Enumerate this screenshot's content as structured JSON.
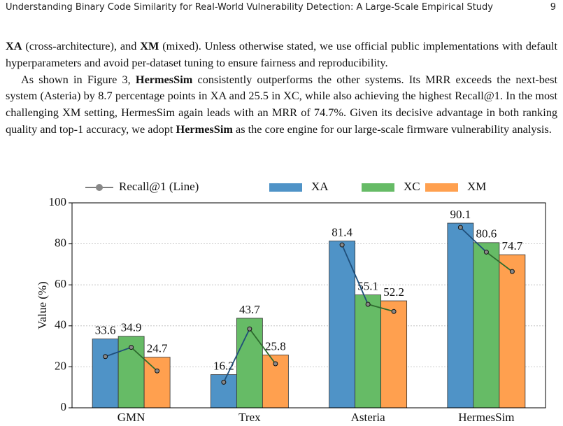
{
  "header": {
    "title": "Understanding Binary Code Similarity for Real-World Vulnerability Detection: A Large-Scale Empirical Study",
    "page": "9"
  },
  "paragraphs": [
    [
      {
        "text": "XA",
        "bold": true
      },
      {
        "text": " (cross-architecture), and "
      },
      {
        "text": "XM",
        "bold": true
      },
      {
        "text": " (mixed). Unless otherwise stated, we use official public implementations with default hyperparameters and avoid per-dataset tuning to ensure fairness and reproducibility."
      }
    ],
    [
      {
        "text": "As shown in Figure 3, "
      },
      {
        "text": "HermesSim",
        "bold": true
      },
      {
        "text": " consistently outperforms the other systems. Its MRR exceeds the next-best system (Asteria) by 8.7 percentage points in XA and 25.5 in XC, while also achieving the highest Recall@1. In the most challenging XM setting, HermesSim again leads with an MRR of 74.7%. Given its decisive advantage in both ranking quality and top-1 accuracy, we adopt "
      },
      {
        "text": "HermesSim",
        "bold": true
      },
      {
        "text": " as the core engine for our large-scale firmware vulnerability analysis."
      }
    ]
  ],
  "chart_data": {
    "type": "bar",
    "y_label": "Value (%)",
    "categories": [
      "GMN",
      "Trex",
      "Asteria",
      "HermesSim"
    ],
    "series": [
      {
        "name": "XA",
        "color": "#4f93c7",
        "values": [
          33.6,
          16.2,
          81.4,
          90.1
        ]
      },
      {
        "name": "XC",
        "color": "#66bb66",
        "values": [
          34.9,
          43.7,
          55.1,
          80.6
        ]
      },
      {
        "name": "XM",
        "color": "#ffa04f",
        "values": [
          24.7,
          25.8,
          52.2,
          74.7
        ]
      }
    ],
    "line": {
      "name": "Recall@1 (Line)",
      "color": "#888888",
      "segment_colors": [
        "#1f4e79",
        "#2e6b2e"
      ],
      "values": [
        [
          25,
          29.5,
          18
        ],
        [
          12.5,
          38.5,
          21.5
        ],
        [
          79.5,
          50.5,
          47
        ],
        [
          88,
          76,
          66.5
        ]
      ]
    },
    "ylim": [
      0,
      100
    ],
    "yticks": [
      0,
      20,
      40,
      60,
      80,
      100
    ],
    "grid": true
  }
}
